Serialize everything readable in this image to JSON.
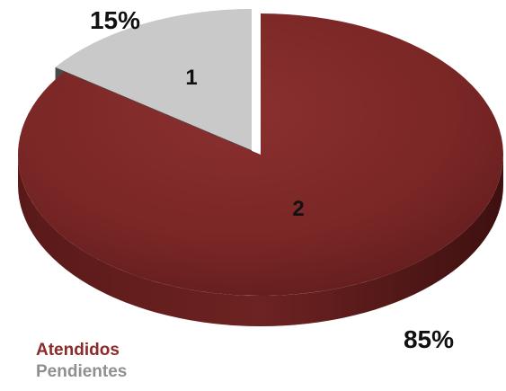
{
  "chart_data": {
    "type": "pie",
    "style": "3d-exploded",
    "categories": [
      "Atendidos",
      "Pendientes"
    ],
    "values": [
      85,
      15
    ],
    "unit": "%",
    "percent_labels": [
      "85%",
      "15%"
    ],
    "slice_labels": [
      "2",
      "1"
    ],
    "colors": [
      "#7b2827",
      "#c9c9c9"
    ],
    "legend": {
      "placement": "bottom-left",
      "items": [
        {
          "name": "Atendidos",
          "color": "#8b2a2a"
        },
        {
          "name": "Pendientes",
          "color": "#8f8f8f"
        }
      ]
    },
    "title": "",
    "xlabel": "",
    "ylabel": ""
  }
}
